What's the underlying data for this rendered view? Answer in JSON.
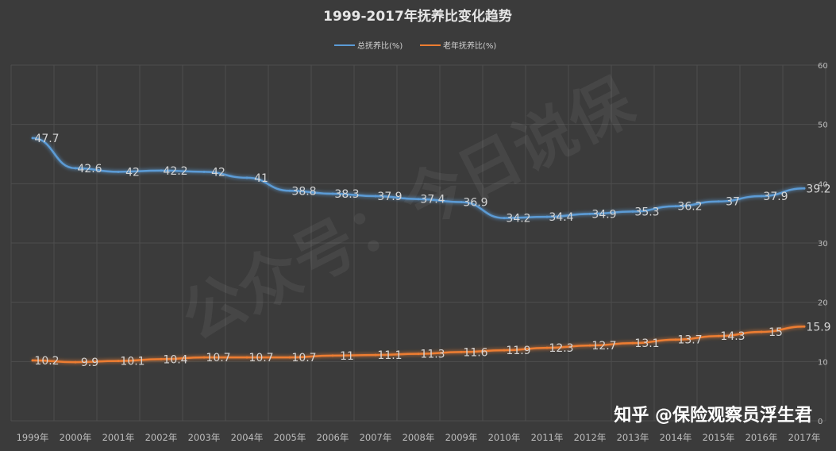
{
  "chart_data": {
    "type": "line",
    "title": "1999-2017年抚养比变化趋势",
    "x": [
      "1999年",
      "2000年",
      "2001年",
      "2002年",
      "2003年",
      "2004年",
      "2005年",
      "2006年",
      "2007年",
      "2008年",
      "2009年",
      "2010年",
      "2011年",
      "2012年",
      "2013年",
      "2014年",
      "2015年",
      "2016年",
      "2017年"
    ],
    "series": [
      {
        "name": "总抚养比(%)",
        "color": "#5b9bd5",
        "values": [
          47.7,
          42.6,
          42,
          42.2,
          42,
          41,
          38.8,
          38.3,
          37.9,
          37.4,
          36.9,
          34.2,
          34.4,
          34.9,
          35.3,
          36.2,
          37,
          37.9,
          39.2
        ],
        "labels": [
          "47.7",
          "42.6",
          "42",
          "42.2",
          "42",
          "41",
          "38.8",
          "38.3",
          "37.9",
          "37.4",
          "36.9",
          "34.2",
          "34.4",
          "34.9",
          "35.3",
          "36.2",
          "37",
          "37.9",
          "39.2"
        ]
      },
      {
        "name": "老年抚养比(%)",
        "color": "#ed7d31",
        "values": [
          10.2,
          9.9,
          10.1,
          10.4,
          10.7,
          10.7,
          10.7,
          11,
          11.1,
          11.3,
          11.6,
          11.9,
          12.3,
          12.7,
          13.1,
          13.7,
          14.3,
          15,
          15.9
        ],
        "labels": [
          "10.2",
          "9.9",
          "10.1",
          "10.4",
          "10.7",
          "10.7",
          "10.7",
          "11",
          "11.1",
          "11.3",
          "11.6",
          "11.9",
          "12.3",
          "12.7",
          "13.1",
          "13.7",
          "14.3",
          "15",
          "15.9"
        ]
      }
    ],
    "ylim": [
      0,
      60
    ],
    "yticks": [
      "0",
      "10",
      "20",
      "30",
      "40",
      "50",
      "60"
    ],
    "ytick_values": [
      0,
      10,
      20,
      30,
      40,
      50,
      60
    ],
    "xlabel": "",
    "ylabel": "",
    "grid": true,
    "legend": "top-center",
    "background": "#3b3b3b",
    "gridline_color": "#4e4e4e"
  },
  "watermarks": {
    "diagonal": "公众号：今日说保",
    "bottom": "知乎 @保险观察员浮生君"
  }
}
